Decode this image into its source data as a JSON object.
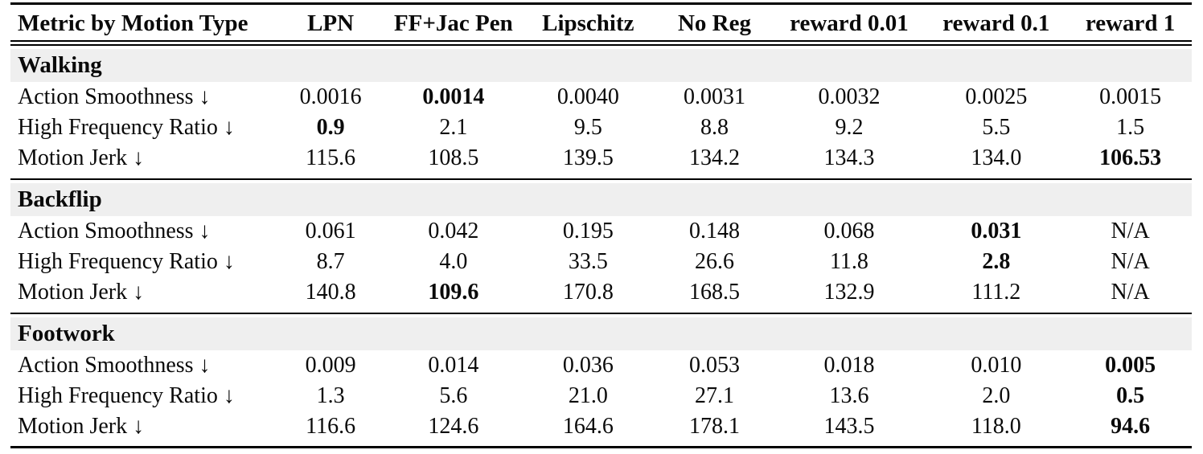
{
  "table": {
    "columns": [
      "Metric by Motion Type",
      "LPN",
      "FF+Jac Pen",
      "Lipschitz",
      "No Reg",
      "reward 0.01",
      "reward 0.1",
      "reward 1"
    ],
    "sections": [
      {
        "name": "Walking",
        "rows": [
          {
            "metric": "Action Smoothness ↓",
            "values": [
              "0.0016",
              "0.0014",
              "0.0040",
              "0.0031",
              "0.0032",
              "0.0025",
              "0.0015"
            ],
            "bold": [
              false,
              true,
              false,
              false,
              false,
              false,
              false
            ]
          },
          {
            "metric": "High Frequency Ratio ↓",
            "values": [
              "0.9",
              "2.1",
              "9.5",
              "8.8",
              "9.2",
              "5.5",
              "1.5"
            ],
            "bold": [
              true,
              false,
              false,
              false,
              false,
              false,
              false
            ]
          },
          {
            "metric": "Motion Jerk ↓",
            "values": [
              "115.6",
              "108.5",
              "139.5",
              "134.2",
              "134.3",
              "134.0",
              "106.53"
            ],
            "bold": [
              false,
              false,
              false,
              false,
              false,
              false,
              true
            ]
          }
        ]
      },
      {
        "name": "Backflip",
        "rows": [
          {
            "metric": "Action Smoothness ↓",
            "values": [
              "0.061",
              "0.042",
              "0.195",
              "0.148",
              "0.068",
              "0.031",
              "N/A"
            ],
            "bold": [
              false,
              false,
              false,
              false,
              false,
              true,
              false
            ]
          },
          {
            "metric": "High Frequency Ratio ↓",
            "values": [
              "8.7",
              "4.0",
              "33.5",
              "26.6",
              "11.8",
              "2.8",
              "N/A"
            ],
            "bold": [
              false,
              false,
              false,
              false,
              false,
              true,
              false
            ]
          },
          {
            "metric": "Motion Jerk ↓",
            "values": [
              "140.8",
              "109.6",
              "170.8",
              "168.5",
              "132.9",
              "111.2",
              "N/A"
            ],
            "bold": [
              false,
              true,
              false,
              false,
              false,
              false,
              false
            ]
          }
        ]
      },
      {
        "name": "Footwork",
        "rows": [
          {
            "metric": "Action Smoothness ↓",
            "values": [
              "0.009",
              "0.014",
              "0.036",
              "0.053",
              "0.018",
              "0.010",
              "0.005"
            ],
            "bold": [
              false,
              false,
              false,
              false,
              false,
              false,
              true
            ]
          },
          {
            "metric": "High Frequency Ratio ↓",
            "values": [
              "1.3",
              "5.6",
              "21.0",
              "27.1",
              "13.6",
              "2.0",
              "0.5"
            ],
            "bold": [
              false,
              false,
              false,
              false,
              false,
              false,
              true
            ]
          },
          {
            "metric": "Motion Jerk ↓",
            "values": [
              "116.6",
              "124.6",
              "164.6",
              "178.1",
              "143.5",
              "118.0",
              "94.6"
            ],
            "bold": [
              false,
              false,
              false,
              false,
              false,
              false,
              true
            ]
          }
        ]
      }
    ],
    "colors": {
      "section_band": "#efefef",
      "text": "#0a0a0a",
      "rule": "#000000"
    }
  }
}
